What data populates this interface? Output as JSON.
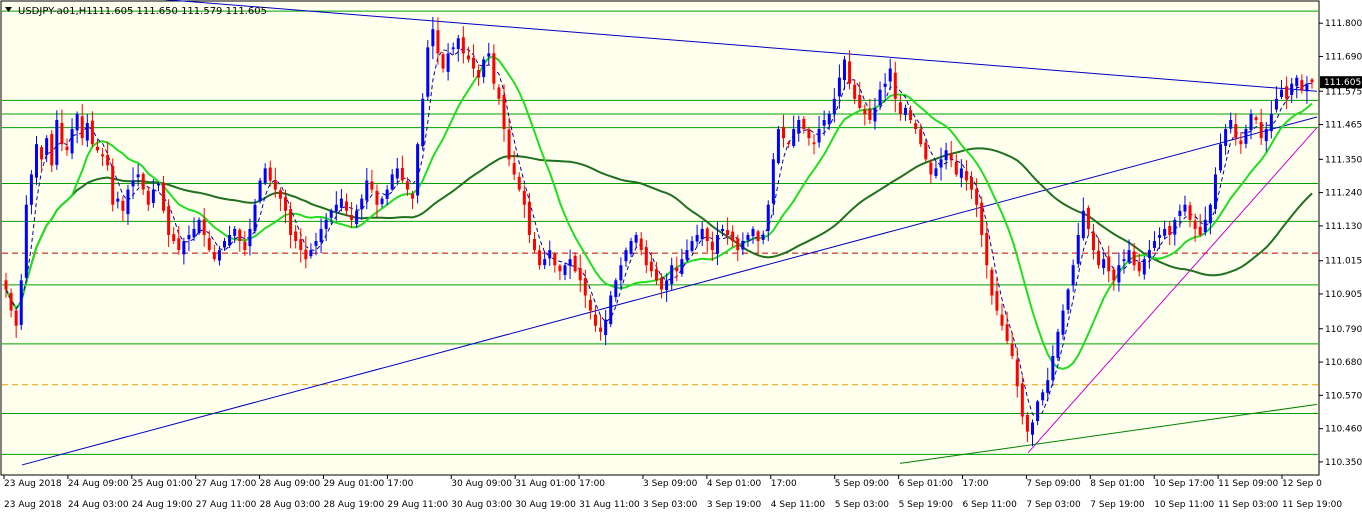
{
  "window": {
    "symbol_info": "USDJPY-a01,H1",
    "ohlc": "111.605 111.650 111.579 111.605"
  },
  "chart_data": {
    "type": "candlestick",
    "symbol": "USDJPY-a01",
    "timeframe": "H1",
    "last_price": "111.605",
    "ylim": [
      110.31,
      111.87
    ],
    "price_ticks": [
      "111.800",
      "111.690",
      "111.575",
      "111.465",
      "111.350",
      "111.240",
      "111.130",
      "111.015",
      "110.905",
      "110.790",
      "110.680",
      "110.570",
      "110.460",
      "110.350"
    ],
    "time_ticks_top": [
      "23 Aug 2018",
      "24 Aug 09:00",
      "25 Aug 01:00",
      "27 Aug 17:00",
      "28 Aug 09:00",
      "29 Aug 01:00",
      "17:00",
      "30 Aug 09:00",
      "31 Aug 01:00",
      "17:00",
      "3 Sep 09:00",
      "4 Sep 01:00",
      "17:00",
      "5 Sep 09:00",
      "6 Sep 01:00",
      "17:00",
      "7 Sep 09:00",
      "8 Sep 01:00",
      "10 Sep 17:00",
      "11 Sep 09:00",
      "12 Sep 0"
    ],
    "time_ticks_bottom": [
      "23 Aug 2018",
      "24 Aug 03:00",
      "24 Aug 19:00",
      "27 Aug 11:00",
      "28 Aug 03:00",
      "28 Aug 19:00",
      "29 Aug 11:00",
      "30 Aug 03:00",
      "30 Aug 19:00",
      "31 Aug 11:00",
      "3 Sep 03:00",
      "3 Sep 19:00",
      "4 Sep 11:00",
      "5 Sep 03:00",
      "5 Sep 19:00",
      "6 Sep 11:00",
      "7 Sep 03:00",
      "7 Sep 19:00",
      "10 Sep 11:00",
      "11 Sep 03:00",
      "11 Sep 19:00"
    ],
    "horizontal_levels": [
      111.84,
      111.545,
      111.5,
      111.455,
      111.27,
      111.145,
      110.935,
      110.74,
      110.51,
      110.375
    ],
    "dashed_levels": [
      {
        "price": 111.04,
        "color": "#c00000"
      },
      {
        "price": 110.605,
        "color": "#e8a000"
      }
    ],
    "trendlines": [
      {
        "color": "#0000c0",
        "from": [
          24.0,
          111.915
        ],
        "to": [
          1317,
          111.575
        ]
      },
      {
        "color": "#0000c0",
        "from": [
          22.0,
          110.34
        ],
        "to": [
          1317,
          111.49
        ]
      },
      {
        "color": "#d000d0",
        "from": [
          1028,
          110.38
        ],
        "to": [
          1317,
          111.455
        ]
      },
      {
        "color": "#008000",
        "from": [
          900,
          110.345
        ],
        "to": [
          1317,
          110.54
        ]
      }
    ],
    "ma_fast_color": "#22dd22",
    "ma_slow_color": "#207020",
    "candle_up_color": "#0000ff",
    "candle_down_color": "#ff0000",
    "closes": [
      110.92,
      110.85,
      110.8,
      110.95,
      111.2,
      111.3,
      111.4,
      111.35,
      111.42,
      111.33,
      111.48,
      111.4,
      111.38,
      111.45,
      111.5,
      111.42,
      111.47,
      111.4,
      111.38,
      111.36,
      111.33,
      111.2,
      111.22,
      111.18,
      111.25,
      111.28,
      111.3,
      111.25,
      111.2,
      111.25,
      111.27,
      111.18,
      111.1,
      111.08,
      111.05,
      111.08,
      111.1,
      111.12,
      111.15,
      111.1,
      111.05,
      111.02,
      111.05,
      111.08,
      111.1,
      111.12,
      111.08,
      111.05,
      111.12,
      111.2,
      111.28,
      111.32,
      111.28,
      111.25,
      111.22,
      111.18,
      111.1,
      111.08,
      111.05,
      111.02,
      111.05,
      111.08,
      111.12,
      111.15,
      111.18,
      111.2,
      111.22,
      111.18,
      111.15,
      111.18,
      111.22,
      111.28,
      111.25,
      111.2,
      111.22,
      111.25,
      111.3,
      111.32,
      111.28,
      111.25,
      111.22,
      111.4,
      111.55,
      111.72,
      111.78,
      111.7,
      111.65,
      111.7,
      111.72,
      111.75,
      111.7,
      111.68,
      111.65,
      111.62,
      111.68,
      111.7,
      111.6,
      111.55,
      111.45,
      111.35,
      111.3,
      111.25,
      111.2,
      111.1,
      111.05,
      111.0,
      111.02,
      111.05,
      111.0,
      110.98,
      111.0,
      111.02,
      110.98,
      110.95,
      110.9,
      110.85,
      110.8,
      110.78,
      110.82,
      110.9,
      110.95,
      111.0,
      111.05,
      111.08,
      111.1,
      111.05,
      111.0,
      110.98,
      110.95,
      110.92,
      110.95,
      111.0,
      110.98,
      111.02,
      111.05,
      111.08,
      111.1,
      111.12,
      111.08,
      111.05,
      111.1,
      111.12,
      111.1,
      111.08,
      111.05,
      111.08,
      111.1,
      111.12,
      111.08,
      111.1,
      111.2,
      111.35,
      111.45,
      111.42,
      111.4,
      111.45,
      111.48,
      111.45,
      111.42,
      111.4,
      111.45,
      111.48,
      111.5,
      111.55,
      111.62,
      111.68,
      111.6,
      111.55,
      111.52,
      111.5,
      111.48,
      111.52,
      111.58,
      111.6,
      111.65,
      111.55,
      111.5,
      111.52,
      111.48,
      111.45,
      111.4,
      111.35,
      111.3,
      111.32,
      111.35,
      111.38,
      111.35,
      111.3,
      111.32,
      111.28,
      111.25,
      111.2,
      111.1,
      111.0,
      110.9,
      110.85,
      110.8,
      110.75,
      110.7,
      110.6,
      110.5,
      110.45,
      110.48,
      110.55,
      110.58,
      110.62,
      110.7,
      110.78,
      110.85,
      110.92,
      111.0,
      111.1,
      111.18,
      111.12,
      111.05,
      111.0,
      111.02,
      110.98,
      110.95,
      111.0,
      111.02,
      111.05,
      111.0,
      110.98,
      111.02,
      111.05,
      111.08,
      111.1,
      111.12,
      111.1,
      111.15,
      111.18,
      111.2,
      111.15,
      111.12,
      111.1,
      111.15,
      111.2,
      111.3,
      111.4,
      111.45,
      111.48,
      111.42,
      111.4,
      111.45,
      111.5,
      111.48,
      111.42,
      111.45,
      111.5,
      111.55,
      111.58,
      111.55,
      111.6,
      111.62,
      111.58,
      111.6,
      111.605
    ]
  }
}
